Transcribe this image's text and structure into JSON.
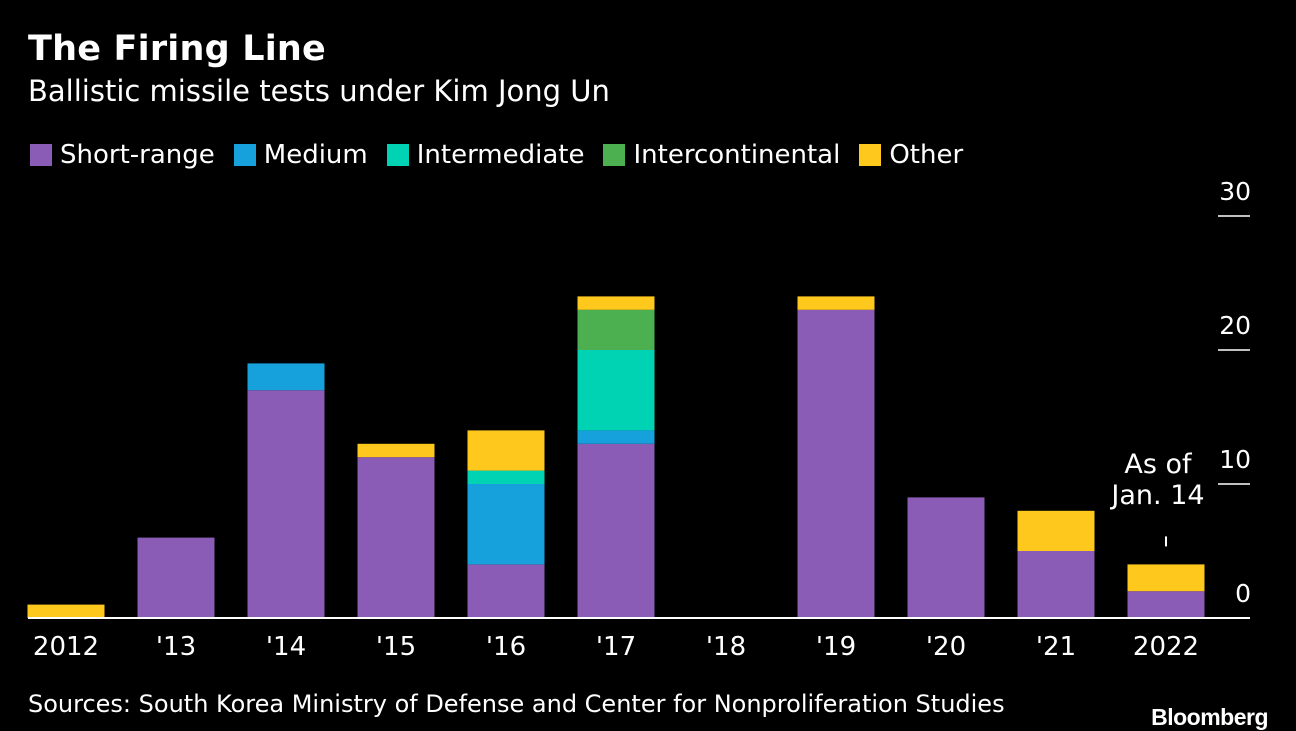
{
  "title": "The Firing Line",
  "subtitle": "Ballistic missile tests under Kim Jong Un",
  "source": "Sources: South Korea Ministry of Defense and Center for Nonproliferation Studies",
  "brand": "Bloomberg",
  "chart_data": {
    "type": "bar",
    "stacked": true,
    "title": "The Firing Line",
    "subtitle": "Ballistic missile tests under Kim Jong Un",
    "categories": [
      "2012",
      "'13",
      "'14",
      "'15",
      "'16",
      "'17",
      "'18",
      "'19",
      "'20",
      "'21",
      "2022"
    ],
    "series": [
      {
        "name": "Short-range",
        "color": "#8b5cb5",
        "values": [
          0,
          6,
          17,
          12,
          4,
          13,
          0,
          23,
          9,
          5,
          2
        ]
      },
      {
        "name": "Medium",
        "color": "#16a0dc",
        "values": [
          0,
          0,
          2,
          0,
          6,
          1,
          0,
          0,
          0,
          0,
          0
        ]
      },
      {
        "name": "Intermediate",
        "color": "#00d2b4",
        "values": [
          0,
          0,
          0,
          0,
          1,
          6,
          0,
          0,
          0,
          0,
          0
        ]
      },
      {
        "name": "Intercontinental",
        "color": "#4caf50",
        "values": [
          0,
          0,
          0,
          0,
          0,
          3,
          0,
          0,
          0,
          0,
          0
        ]
      },
      {
        "name": "Other",
        "color": "#fec81d",
        "values": [
          1,
          0,
          0,
          1,
          3,
          1,
          0,
          1,
          0,
          3,
          2
        ]
      }
    ],
    "yticks": [
      0,
      10,
      20,
      30
    ],
    "ylim": [
      0,
      30
    ],
    "yaxis_position": "right",
    "xlabel": "",
    "ylabel": "",
    "annotation": {
      "category": "2022",
      "lines": [
        "As of",
        "Jan. 14"
      ]
    }
  }
}
